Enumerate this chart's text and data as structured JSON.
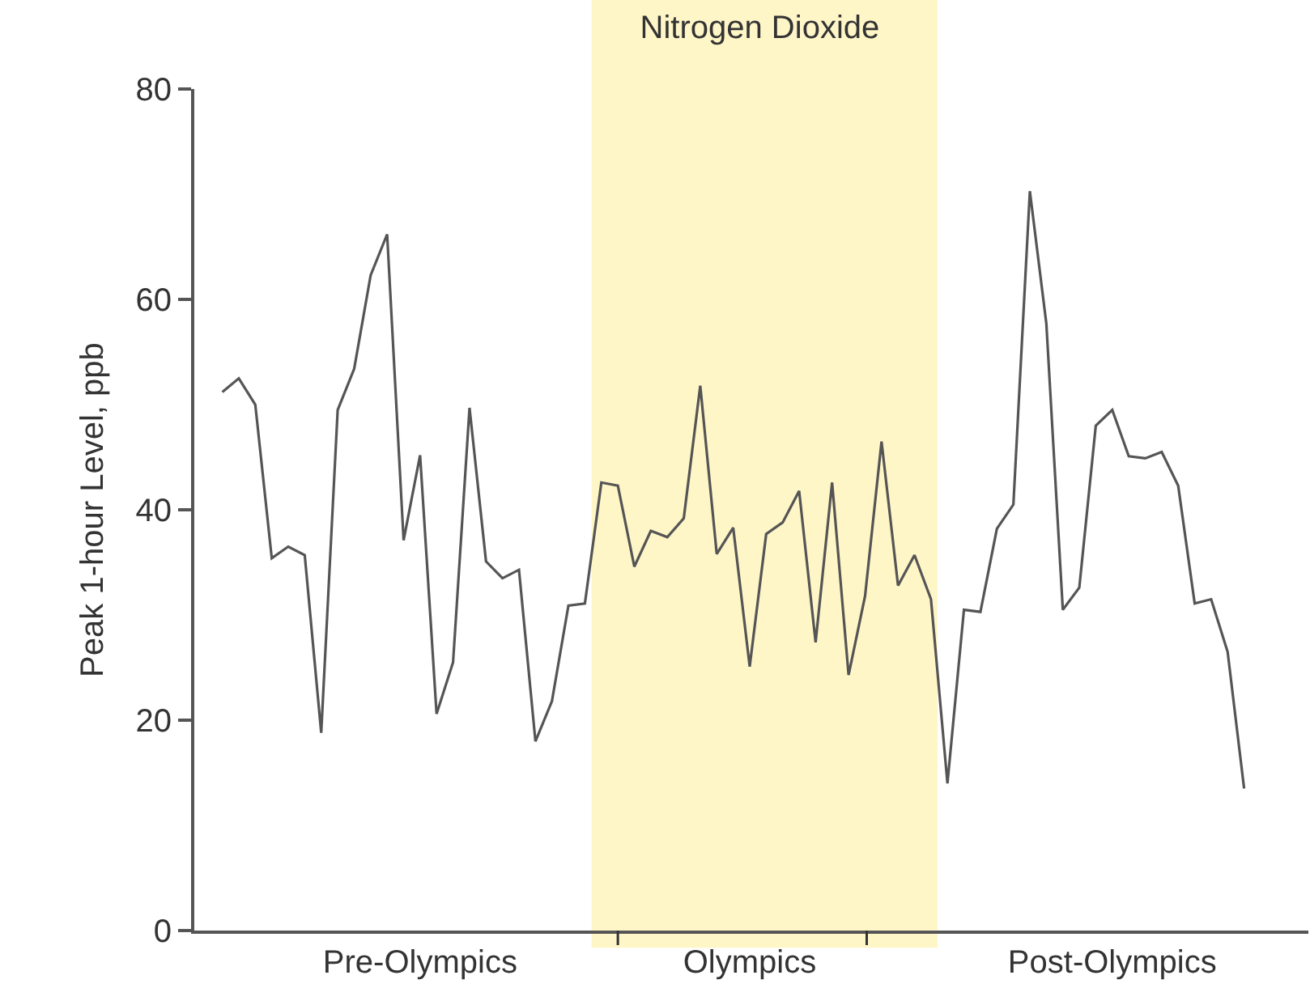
{
  "chart_data": {
    "type": "line",
    "title": "Nitrogen Dioxide",
    "ylabel": "Peak 1-hour Level, ppb",
    "categories": [
      null,
      null,
      null,
      null,
      null,
      null,
      null,
      null,
      null,
      null,
      null,
      null,
      "Pre-Olympics",
      null,
      null,
      null,
      null,
      null,
      null,
      null,
      null,
      null,
      null,
      null,
      null,
      null,
      null,
      null,
      null,
      null,
      null,
      null,
      "Olympics",
      null,
      null,
      null,
      null,
      null,
      null,
      null,
      null,
      null,
      null,
      null,
      null,
      null,
      null,
      null,
      null,
      null,
      null,
      null,
      null,
      null,
      "Post-Olympics",
      null,
      null,
      null,
      null,
      null,
      null,
      null,
      null
    ],
    "series": [
      {
        "color": "#555555",
        "values": [
          51.2,
          52.5,
          50.0,
          35.4,
          36.5,
          35.7,
          18.8,
          49.5,
          53.4,
          62.3,
          66.2,
          37.1,
          45.2,
          20.6,
          25.5,
          49.7,
          35.1,
          33.5,
          34.3,
          18.0,
          21.8,
          30.9,
          31.1,
          42.6,
          42.3,
          34.6,
          38.0,
          37.4,
          39.2,
          51.8,
          35.8,
          38.3,
          25.1,
          37.7,
          38.8,
          41.8,
          27.4,
          42.6,
          24.3,
          31.8,
          46.5,
          32.8,
          35.7,
          31.5,
          14.0,
          30.5,
          30.3,
          38.2,
          40.5,
          70.3,
          57.7,
          30.5,
          32.6,
          48.0,
          49.5,
          45.1,
          44.9,
          45.5,
          42.3,
          31.1,
          31.5,
          26.5,
          13.5
        ]
      }
    ],
    "ylim": [
      0,
      80
    ],
    "yticks": [
      0,
      20,
      40,
      60,
      80
    ],
    "grid": false,
    "marker": "none",
    "line_style": "solid"
  }
}
